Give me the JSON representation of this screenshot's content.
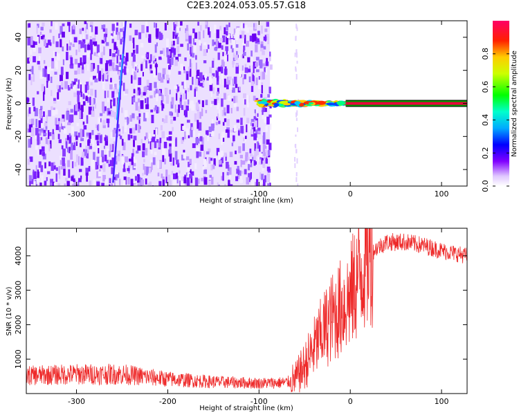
{
  "title": "C2E3.2024.053.05.57.G18",
  "colors": {
    "scatter_purple": "#7b00ff",
    "snr_red": "#ee2a2a",
    "band_green": "#00a000",
    "band_red": "#e8003c"
  },
  "chart_data": [
    {
      "type": "heatmap",
      "xlabel": "Height of straight line (km)",
      "ylabel": "Frequency (Hz)",
      "xlim": [
        -355,
        128
      ],
      "ylim": [
        -50,
        50
      ],
      "xticks": [
        -300,
        -200,
        -100,
        0,
        100
      ],
      "xtick_labels": [
        "-300",
        "-200",
        "-100",
        "0",
        "100"
      ],
      "yticks": [
        -40,
        -20,
        0,
        20,
        40
      ],
      "ytick_labels": [
        "-40",
        "-20",
        "0",
        "20",
        "40"
      ],
      "grid": false,
      "noise_region_km": [
        -355,
        -88
      ],
      "carrier_line_hz": 0,
      "carrier_start_km": -100,
      "colorbar": {
        "label": "Normalized spectral amplitude",
        "range": [
          0,
          1
        ],
        "ticks": [
          0.0,
          0.2,
          0.4,
          0.6,
          0.8
        ],
        "tick_labels": [
          "0.0",
          "0.2",
          "0.4",
          "0.6",
          "0.8"
        ]
      }
    },
    {
      "type": "line",
      "xlabel": "Height of straight line (km)",
      "ylabel": "SNR (10 * v/v)",
      "xlim": [
        -355,
        128
      ],
      "ylim": [
        0,
        4800
      ],
      "xticks": [
        -300,
        -200,
        -100,
        0,
        100
      ],
      "xtick_labels": [
        "-300",
        "-200",
        "-100",
        "0",
        "100"
      ],
      "yticks": [
        1000,
        2000,
        3000,
        4000
      ],
      "ytick_labels": [
        "1000",
        "2000",
        "3000",
        "4000"
      ],
      "grid": false,
      "series": [
        {
          "x": [
            -355,
            -300,
            -250,
            -200,
            -150,
            -100,
            -70,
            -60,
            -50,
            -40,
            -30,
            -20,
            -10,
            0,
            10,
            20,
            30,
            40,
            60,
            80,
            100,
            128
          ],
          "y": [
            520,
            560,
            560,
            420,
            340,
            300,
            320,
            400,
            800,
            1300,
            1800,
            2200,
            2500,
            2800,
            3500,
            4000,
            4250,
            4400,
            4400,
            4300,
            4150,
            4000
          ]
        }
      ]
    }
  ]
}
